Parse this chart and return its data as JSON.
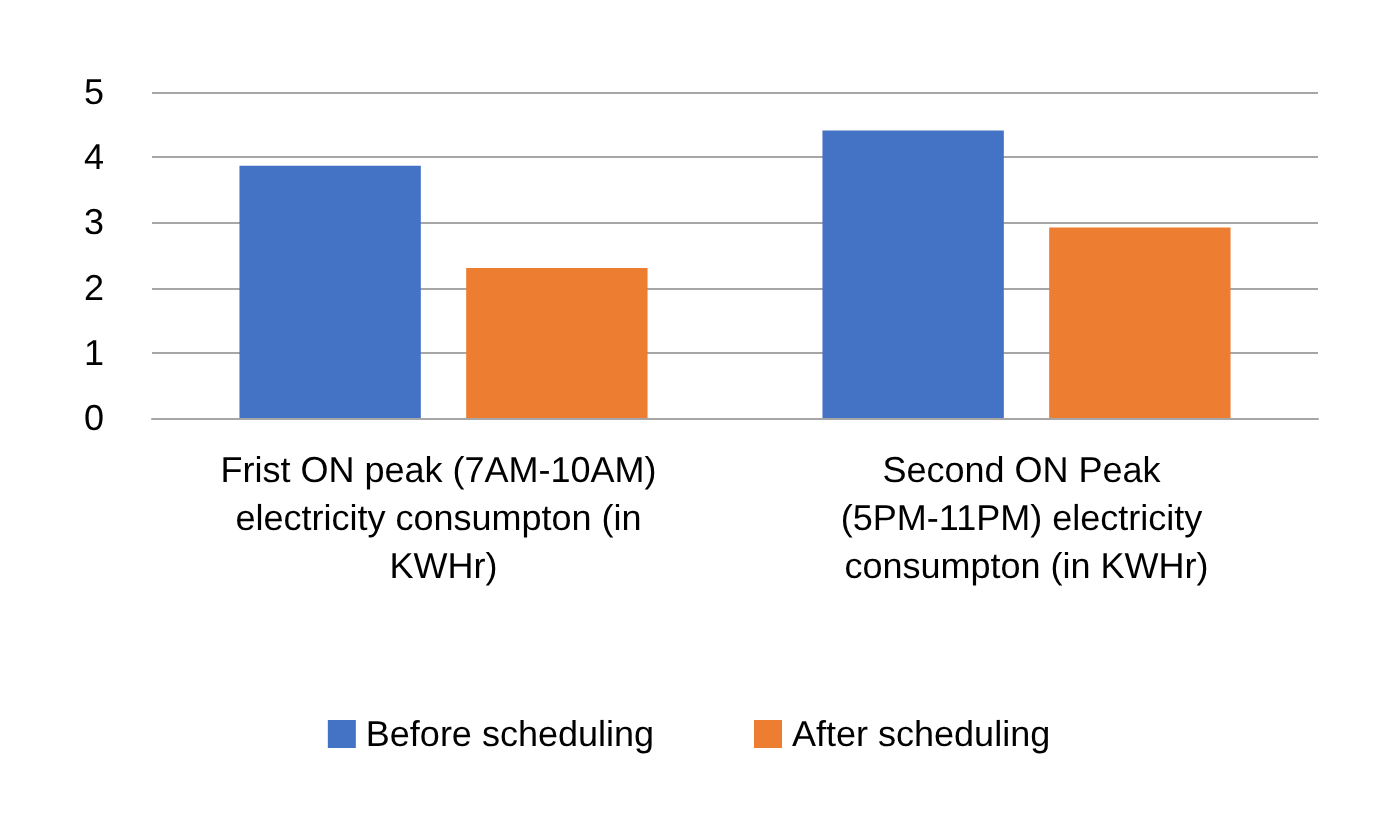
{
  "chart_data": {
    "type": "bar",
    "categories": [
      "Frist ON peak (7AM-10AM) electricity consumpton (in KWHr)",
      "Second ON Peak (5PM-11PM) electricity consumpton (in KWHr)"
    ],
    "series": [
      {
        "name": "Before scheduling",
        "color": "#4472c4",
        "values": [
          3.87,
          4.41
        ]
      },
      {
        "name": "After scheduling",
        "color": "#ed7d31",
        "values": [
          2.3,
          2.92
        ]
      }
    ],
    "ylim": [
      0,
      5
    ],
    "yticks": [
      0,
      1,
      2,
      3,
      4,
      5
    ],
    "grid": "y",
    "legend": "bottom"
  }
}
